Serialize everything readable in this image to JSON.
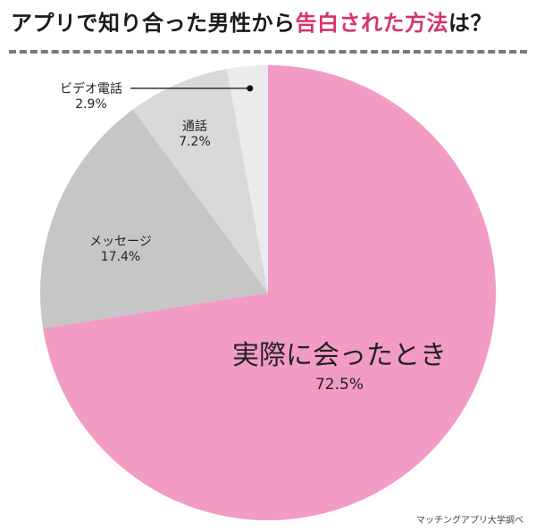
{
  "title": {
    "prefix": "アプリで知り合った男性から",
    "highlight": "告白された方法",
    "suffix": "は？"
  },
  "source": "マッチングアプリ大学調べ",
  "colors": {
    "accent": "#d6336c",
    "pink": "#f29bc4",
    "gray1": "#c6c6c6",
    "gray2": "#d9d9d9",
    "gray3": "#ebebeb"
  },
  "chart_data": {
    "type": "pie",
    "start": "top",
    "direction": "clockwise",
    "slices": [
      {
        "label": "実際に会ったとき",
        "value": 72.5,
        "value_label": "72.5%",
        "color": "#f29bc4"
      },
      {
        "label": "メッセージ",
        "value": 17.4,
        "value_label": "17.4%",
        "color": "#c6c6c6"
      },
      {
        "label": "通話",
        "value": 7.2,
        "value_label": "7.2%",
        "color": "#d9d9d9"
      },
      {
        "label": "ビデオ電話",
        "value": 2.9,
        "value_label": "2.9%",
        "color": "#ebebeb"
      }
    ]
  }
}
